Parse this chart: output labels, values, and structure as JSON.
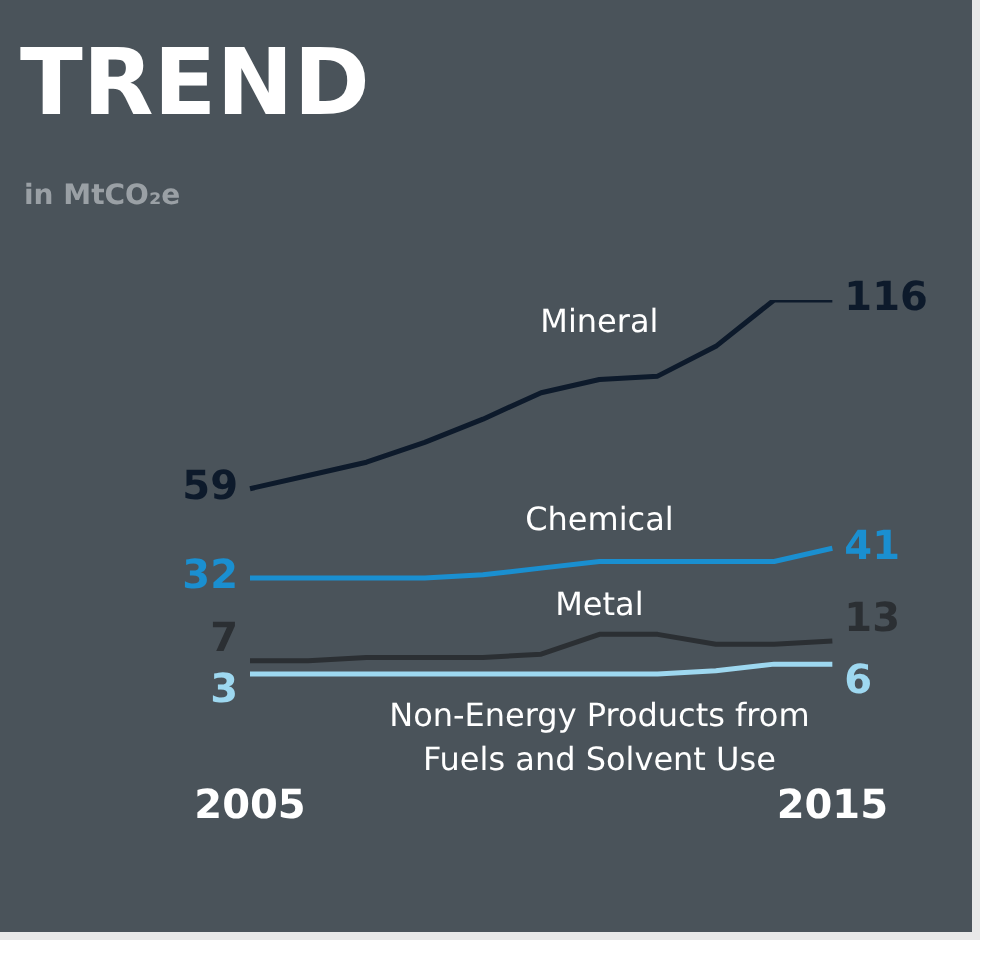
{
  "chart_data": {
    "type": "line",
    "title": "TREND",
    "subtitle": "in MtCO₂e",
    "categories": [
      "2005",
      null,
      null,
      null,
      null,
      null,
      null,
      null,
      null,
      null,
      "2015"
    ],
    "series": [
      {
        "name": "Mineral",
        "color": "#0d1a2b",
        "values": [
          59,
          63,
          67,
          73,
          80,
          88,
          92,
          93,
          102,
          116,
          116
        ],
        "value_labels": [
          "59",
          null,
          null,
          null,
          null,
          null,
          null,
          null,
          null,
          null,
          "116"
        ]
      },
      {
        "name": "Chemical",
        "color": "#1a8fd0",
        "values": [
          32,
          32,
          32,
          32,
          33,
          35,
          37,
          37,
          37,
          37,
          41
        ],
        "value_labels": [
          "32",
          null,
          null,
          null,
          null,
          null,
          null,
          null,
          null,
          null,
          "41"
        ]
      },
      {
        "name": "Metal",
        "color": "#2b2f33",
        "values": [
          7,
          7,
          8,
          8,
          8,
          9,
          15,
          15,
          12,
          12,
          13
        ],
        "value_labels": [
          "7",
          null,
          null,
          null,
          null,
          null,
          null,
          null,
          null,
          null,
          "13"
        ]
      },
      {
        "name": "Non-Energy Products from Fuels and Solvent Use",
        "color": "#9ed8f0",
        "values": [
          3,
          3,
          3,
          3,
          3,
          3,
          3,
          3,
          4,
          6,
          6
        ],
        "value_labels": [
          "3",
          null,
          null,
          null,
          null,
          null,
          null,
          null,
          null,
          null,
          "6"
        ]
      }
    ],
    "legend": false,
    "grid": false,
    "marker": "none",
    "line_style": "solid",
    "tick_labels": "x"
  }
}
